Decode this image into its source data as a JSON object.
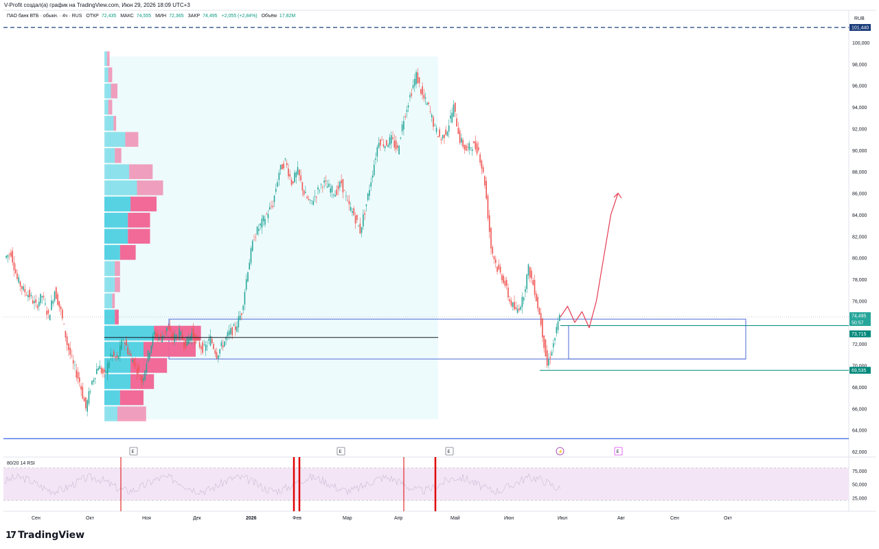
{
  "header": {
    "author_line": "V-Profit создал(а) график на TradingView.com, Июн 29, 2026 18:09 UTC+3",
    "symbol": "ПАО банк ВТБ · обыкн. · 4ч · RUS",
    "open_label": "ОТКР",
    "open_value": "72,435",
    "high_label": "МАКС",
    "high_value": "74,555",
    "low_label": "МИН",
    "low_value": "72,365",
    "close_label": "ЗАКР",
    "close_value": "74,495",
    "change_value": "+2,055 (+2,84%)",
    "volume_label": "Объём",
    "volume_value": "17,82M"
  },
  "colors": {
    "up": "#26a69a",
    "down": "#ef5350",
    "accent_line": "#1e53e5",
    "box": "#4a67d6",
    "green_line": "#00897b",
    "profile_buy": "#4dd0e1",
    "profile_sell": "#f06292",
    "profile_bg": "#e0f7fa",
    "rsi_band": "#f3e5f5",
    "arrow": "#e53950"
  },
  "chart_data": {
    "type": "candlestick",
    "currency": "RUB",
    "y_ticks": [
      "100,000",
      "98,000",
      "96,000",
      "94,000",
      "92,000",
      "90,000",
      "88,000",
      "86,000",
      "84,000",
      "82,000",
      "80,000",
      "78,000",
      "76,000",
      "74,000",
      "72,000",
      "70,000",
      "68,000",
      "66,000",
      "64,000",
      "62,000"
    ],
    "y_tick_values": [
      100,
      98,
      96,
      94,
      92,
      90,
      88,
      86,
      84,
      82,
      80,
      78,
      76,
      74,
      72,
      70,
      68,
      66,
      64,
      62
    ],
    "x_ticks": [
      "Сен",
      "Окт",
      "Ноя",
      "Дек",
      "2026",
      "Фев",
      "Мар",
      "Апр",
      "Май",
      "Июн",
      "Июл",
      "Авг",
      "Сен",
      "Окт"
    ],
    "price_path": [
      [
        0,
        80
      ],
      [
        1,
        80.5
      ],
      [
        2,
        78
      ],
      [
        3,
        77
      ],
      [
        4,
        76.5
      ],
      [
        5,
        75.5
      ],
      [
        6,
        76.5
      ],
      [
        7,
        74.5
      ],
      [
        8,
        77
      ],
      [
        9,
        75
      ],
      [
        10,
        72
      ],
      [
        11,
        70
      ],
      [
        12,
        68.5
      ],
      [
        13,
        66
      ],
      [
        14,
        68.5
      ],
      [
        15,
        70
      ],
      [
        16,
        69
      ],
      [
        17,
        71
      ],
      [
        18,
        70.5
      ],
      [
        19,
        72.5
      ],
      [
        20,
        71
      ],
      [
        21,
        70
      ],
      [
        22,
        68.5
      ],
      [
        23,
        71
      ],
      [
        24,
        73
      ],
      [
        25,
        72.5
      ],
      [
        26,
        73.5
      ],
      [
        27,
        72.5
      ],
      [
        28,
        73
      ],
      [
        29,
        72
      ],
      [
        30,
        73
      ],
      [
        31,
        72
      ],
      [
        32,
        71.5
      ],
      [
        33,
        72.5
      ],
      [
        34,
        71
      ],
      [
        35,
        72
      ],
      [
        36,
        73
      ],
      [
        37,
        73.5
      ],
      [
        38,
        75
      ],
      [
        39,
        79
      ],
      [
        40,
        82
      ],
      [
        41,
        83
      ],
      [
        42,
        84
      ],
      [
        43,
        85
      ],
      [
        44,
        88
      ],
      [
        45,
        89
      ],
      [
        46,
        87
      ],
      [
        47,
        88
      ],
      [
        48,
        86
      ],
      [
        49,
        85
      ],
      [
        50,
        86
      ],
      [
        51,
        87
      ],
      [
        52,
        86.5
      ],
      [
        53,
        86
      ],
      [
        54,
        87
      ],
      [
        55,
        85
      ],
      [
        56,
        84
      ],
      [
        57,
        82.5
      ],
      [
        58,
        85
      ],
      [
        59,
        88
      ],
      [
        60,
        91
      ],
      [
        61,
        90.5
      ],
      [
        62,
        91
      ],
      [
        63,
        90
      ],
      [
        64,
        93
      ],
      [
        65,
        95
      ],
      [
        66,
        97
      ],
      [
        67,
        95
      ],
      [
        68,
        94
      ],
      [
        69,
        92
      ],
      [
        70,
        91
      ],
      [
        71,
        92
      ],
      [
        72,
        94
      ],
      [
        73,
        91
      ],
      [
        74,
        90
      ],
      [
        75,
        90.5
      ],
      [
        76,
        90
      ],
      [
        77,
        87
      ],
      [
        78,
        81
      ],
      [
        79,
        79
      ],
      [
        80,
        78
      ],
      [
        81,
        76
      ],
      [
        82,
        75
      ],
      [
        83,
        76
      ],
      [
        84,
        79
      ],
      [
        85,
        77
      ],
      [
        86,
        74
      ],
      [
        87,
        70
      ],
      [
        88,
        72
      ],
      [
        89,
        74.5
      ]
    ],
    "dashed_high_line": "101,440",
    "level_labels": {
      "close": "74,495",
      "timer": "50:57",
      "upper": "73,715",
      "lower": "69,535"
    },
    "zones": [
      {
        "name": "volume-zone-box",
        "top": 74.3,
        "bottom": 70.6
      },
      {
        "name": "target-zone-box",
        "top": 73.7,
        "bottom": 70.6
      }
    ],
    "poc_price": 72.6,
    "blue_line_price": 63.2,
    "projection": [
      [
        74.5
      ],
      [
        75.5
      ],
      [
        74
      ],
      [
        75
      ],
      [
        73.5
      ],
      [
        76
      ],
      [
        80
      ],
      [
        84
      ],
      [
        86
      ]
    ],
    "volume_profile": {
      "price_levels": [
        98.5,
        97,
        95.5,
        94,
        92.5,
        91,
        89.5,
        88,
        86.5,
        85,
        83.5,
        82,
        80.5,
        79,
        77.5,
        76,
        74.5,
        73,
        71.5,
        70,
        68.5,
        67,
        65.5
      ],
      "buy": [
        2,
        3,
        5,
        3,
        7,
        16,
        8,
        19,
        25,
        20,
        18,
        18,
        12,
        8,
        8,
        6,
        8,
        38,
        30,
        20,
        20,
        12,
        10
      ],
      "sell": [
        2,
        3,
        5,
        3,
        2,
        10,
        5,
        18,
        20,
        20,
        17,
        17,
        12,
        4,
        4,
        2,
        3,
        36,
        40,
        28,
        18,
        18,
        22
      ]
    },
    "rsi": {
      "label": "80/20 14 RSI",
      "ticks": [
        "75,000",
        "50,000",
        "25,000"
      ],
      "tick_values": [
        75,
        50,
        25
      ],
      "band": [
        80,
        20
      ],
      "extreme_markers": [
        "Ноя",
        "Фев",
        "Фев",
        "Апр",
        "Апр"
      ]
    },
    "event_markers": [
      "E",
      "E",
      "E",
      "⚡",
      "E"
    ]
  },
  "footer": {
    "logo_mark": "17",
    "logo_text": "TradingView"
  }
}
